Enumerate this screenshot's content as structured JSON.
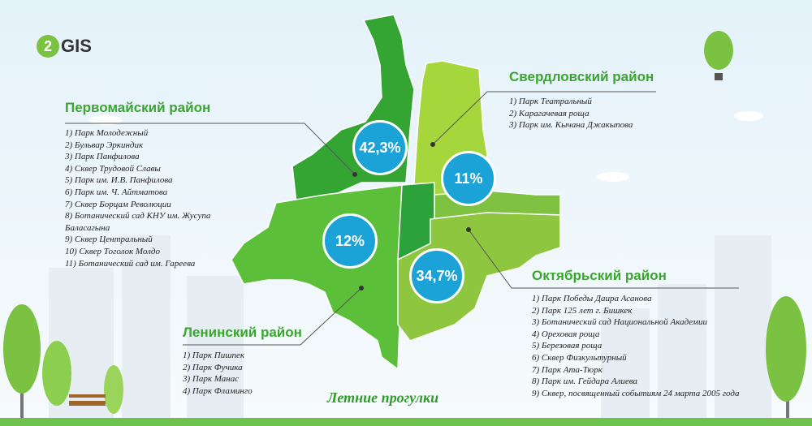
{
  "logo": {
    "mark": "2",
    "text": "GIS"
  },
  "title": "Летние прогулки",
  "districts": [
    {
      "name": "Первомайский район",
      "share": "42,3%",
      "parks": [
        "1) Парк Молодежный",
        "2) Бульвар Эркиндик",
        "3) Парк Панфилова",
        "4) Сквер Трудовой Славы",
        "5) Парк им. И.В. Панфилова",
        "6) Парк им. Ч. Айтматова",
        "7) Сквер Борцам Революции",
        "8) Ботанический сад КНУ им. Жусупа Баласагына",
        "9) Сквер Центральный",
        "10) Сквер Тоголок Молдо",
        "11) Ботанический сад им. Гареева"
      ]
    },
    {
      "name": "Свердловский район",
      "share": "11%",
      "parks": [
        "1) Парк Театральный",
        "2) Карагачевая роща",
        "3) Парк им. Кычана Джакыпова"
      ]
    },
    {
      "name": "Ленинский район",
      "share": "12%",
      "parks": [
        "1) Парк Пишпек",
        "2) Парк Фучика",
        "3) Парк Манас",
        "4) Парк Фламинго"
      ]
    },
    {
      "name": "Октябрьский район",
      "share": "34,7%",
      "parks": [
        "1) Парк Победы Даира Асанова",
        "2) Парк 125 лет г. Бишкек",
        "3) Ботанический сад Национальной Академии",
        "4) Ореховая роща",
        "5) Березовая роща",
        "6) Сквер Физкультурный",
        "7) Парк Ата-Тюрк",
        "8) Парк им. Гейдара Алиева",
        "9) Сквер, посвященный событиям 24 марта 2005 года"
      ]
    }
  ]
}
